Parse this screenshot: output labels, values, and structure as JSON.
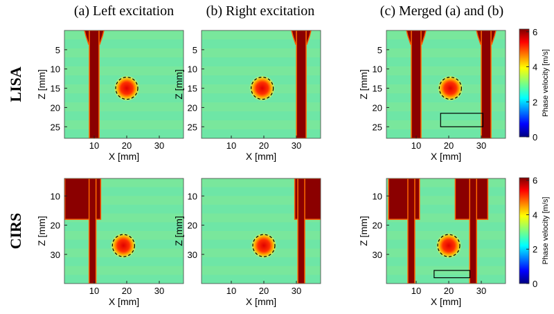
{
  "column_titles": [
    "(a) Left excitation",
    "(b) Right excitation",
    "(c) Merged (a) and (b)"
  ],
  "row_labels": [
    "LISA",
    "CIRS"
  ],
  "x_label": "X [mm]",
  "z_label": "Z [mm]",
  "colorbar_label": "Phase velocity [m/s]",
  "x_ticks": [
    10,
    20,
    30
  ],
  "rows": [
    {
      "z_ticks": [
        5,
        10,
        15,
        20,
        25
      ],
      "colorbar_ticks": [
        0,
        2,
        4,
        6
      ]
    },
    {
      "z_ticks": [
        10,
        20,
        30
      ],
      "colorbar_ticks": [
        0,
        2,
        4,
        6
      ]
    }
  ]
}
